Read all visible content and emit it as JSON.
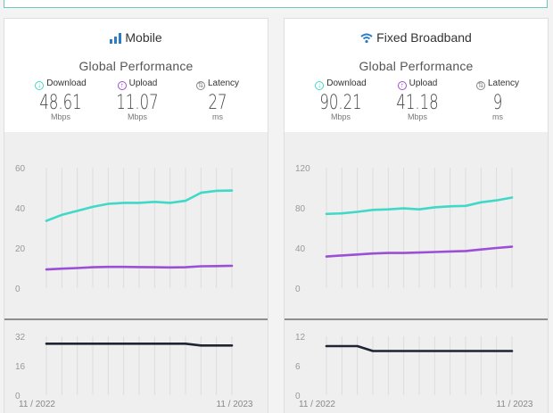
{
  "colors": {
    "download": "#40d9c7",
    "upload": "#9b4fd6",
    "latency": "#1f2433",
    "grid": "#dcdcdc",
    "accent_blue": "#2a7cc7"
  },
  "cards": [
    {
      "title": "Mobile",
      "icon": "signal-bars-icon",
      "subtitle": "Global Performance",
      "metrics": [
        {
          "label": "Download",
          "value": "48.61",
          "unit": "Mbps",
          "icon": "arrow-down-circle-icon"
        },
        {
          "label": "Upload",
          "value": "11.07",
          "unit": "Mbps",
          "icon": "arrow-up-circle-icon"
        },
        {
          "label": "Latency",
          "value": "27",
          "unit": "ms",
          "icon": "latency-circle-icon"
        }
      ]
    },
    {
      "title": "Fixed Broadband",
      "icon": "wifi-icon",
      "subtitle": "Global Performance",
      "metrics": [
        {
          "label": "Download",
          "value": "90.21",
          "unit": "Mbps",
          "icon": "arrow-down-circle-icon"
        },
        {
          "label": "Upload",
          "value": "41.18",
          "unit": "Mbps",
          "icon": "arrow-up-circle-icon"
        },
        {
          "label": "Latency",
          "value": "9",
          "unit": "ms",
          "icon": "latency-circle-icon"
        }
      ]
    }
  ],
  "chart_data": [
    {
      "type": "line",
      "panel": "speed",
      "x": [
        "11/2022",
        "12/2022",
        "01/2023",
        "02/2023",
        "03/2023",
        "04/2023",
        "05/2023",
        "06/2023",
        "07/2023",
        "08/2023",
        "09/2023",
        "10/2023",
        "11/2023"
      ],
      "yticks": [
        0,
        20,
        40,
        60
      ],
      "ylim": [
        0,
        60
      ],
      "series": [
        {
          "name": "Download",
          "values": [
            33.5,
            36.5,
            38.5,
            40.5,
            42,
            42.5,
            42.5,
            43,
            42.5,
            43.5,
            47.5,
            48.5,
            48.6
          ]
        },
        {
          "name": "Upload",
          "values": [
            9.3,
            9.7,
            10.0,
            10.4,
            10.6,
            10.6,
            10.5,
            10.4,
            10.3,
            10.4,
            10.9,
            11.0,
            11.1
          ]
        }
      ]
    },
    {
      "type": "line",
      "panel": "latency",
      "x": [
        "11/2022",
        "12/2022",
        "01/2023",
        "02/2023",
        "03/2023",
        "04/2023",
        "05/2023",
        "06/2023",
        "07/2023",
        "08/2023",
        "09/2023",
        "10/2023",
        "11/2023"
      ],
      "x_tick_labels": [
        "11 / 2022",
        "11 / 2023"
      ],
      "yticks": [
        0,
        16,
        32
      ],
      "ylim": [
        0,
        32
      ],
      "series": [
        {
          "name": "Latency",
          "values": [
            28,
            28,
            28,
            28,
            28,
            28,
            28,
            28,
            28,
            28,
            27,
            27,
            27
          ]
        }
      ]
    },
    {
      "type": "line",
      "panel": "speed",
      "x": [
        "11/2022",
        "12/2022",
        "01/2023",
        "02/2023",
        "03/2023",
        "04/2023",
        "05/2023",
        "06/2023",
        "07/2023",
        "08/2023",
        "09/2023",
        "10/2023",
        "11/2023"
      ],
      "yticks": [
        0,
        40,
        80,
        120
      ],
      "ylim": [
        0,
        120
      ],
      "series": [
        {
          "name": "Download",
          "values": [
            74,
            74.5,
            76,
            78,
            78.5,
            79.5,
            78.5,
            80.5,
            81.5,
            82,
            85.5,
            87.5,
            90.2
          ]
        },
        {
          "name": "Upload",
          "values": [
            31.5,
            32.5,
            33.5,
            34.5,
            35,
            35,
            35.5,
            36,
            36.5,
            37,
            38.5,
            40,
            41.2
          ]
        }
      ]
    },
    {
      "type": "line",
      "panel": "latency",
      "x": [
        "11/2022",
        "12/2022",
        "01/2023",
        "02/2023",
        "03/2023",
        "04/2023",
        "05/2023",
        "06/2023",
        "07/2023",
        "08/2023",
        "09/2023",
        "10/2023",
        "11/2023"
      ],
      "x_tick_labels": [
        "11 / 2022",
        "11 / 2023"
      ],
      "yticks": [
        0,
        6,
        12
      ],
      "ylim": [
        0,
        12
      ],
      "series": [
        {
          "name": "Latency",
          "values": [
            10,
            10,
            10,
            9,
            9,
            9,
            9,
            9,
            9,
            9,
            9,
            9,
            9
          ]
        }
      ]
    }
  ]
}
